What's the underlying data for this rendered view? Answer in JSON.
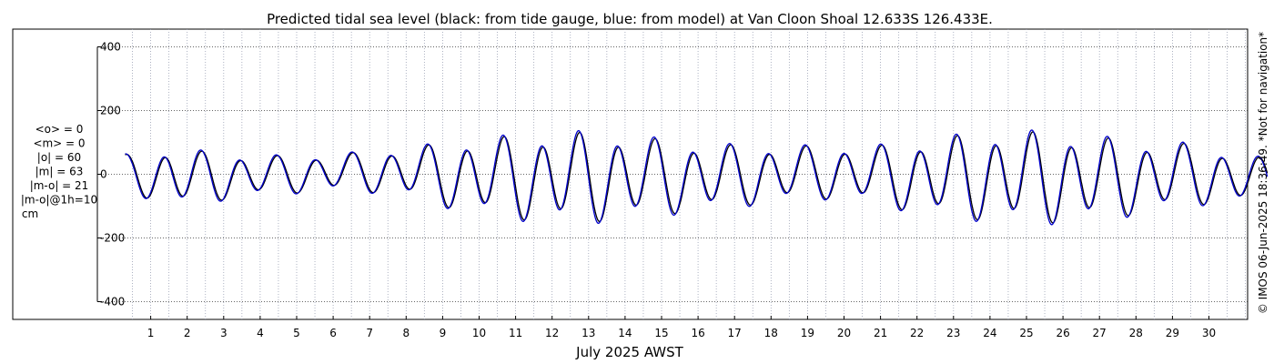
{
  "chart_data": {
    "type": "line",
    "title": "Predicted tidal sea level (black: from tide gauge, blue: from model) at Van Cloon Shoal 12.633S 126.433E.",
    "xlabel": "July 2025 AWST",
    "ylabel": "",
    "xlim": [
      0.3,
      31.6
    ],
    "ylim": [
      -450,
      450
    ],
    "yticks": [
      -400,
      -200,
      0,
      200,
      400
    ],
    "yticklabels": [
      "-400",
      "-200",
      "0",
      "200",
      "400"
    ],
    "xticks": [
      1,
      2,
      3,
      4,
      5,
      6,
      7,
      8,
      9,
      10,
      11,
      12,
      13,
      14,
      15,
      16,
      17,
      18,
      19,
      20,
      21,
      22,
      23,
      24,
      25,
      26,
      27,
      28,
      29,
      30
    ],
    "xticklabels": [
      "1",
      "2",
      "3",
      "4",
      "5",
      "6",
      "7",
      "8",
      "9",
      "10",
      "11",
      "12",
      "13",
      "14",
      "15",
      "16",
      "17",
      "18",
      "19",
      "20",
      "21",
      "22",
      "23",
      "24",
      "25",
      "26",
      "27",
      "28",
      "29",
      "30"
    ],
    "grid": true,
    "colors": {
      "gauge": "#000000",
      "model": "#0000cc",
      "grid": "#9aa0b4"
    },
    "envelope_days": [
      0.3,
      1.5,
      3.3,
      4.5,
      5.7,
      6.7,
      8.3,
      9.5,
      10.6,
      11.7,
      12.7,
      13.7,
      15.0,
      16.3,
      17.8,
      19.3,
      20.8,
      21.8,
      22.6,
      23.6,
      24.6,
      25.6,
      26.6,
      27.6,
      28.6,
      29.6,
      30.6,
      31.6
    ],
    "envelope_high": [
      60,
      80,
      65,
      60,
      65,
      70,
      85,
      105,
      118,
      128,
      132,
      128,
      110,
      95,
      90,
      88,
      90,
      100,
      115,
      128,
      135,
      132,
      122,
      110,
      100,
      95,
      70,
      50
    ],
    "envelope_low": [
      -50,
      -100,
      -75,
      -60,
      -50,
      -50,
      -75,
      -115,
      -130,
      -148,
      -150,
      -142,
      -125,
      -110,
      -90,
      -75,
      -85,
      -115,
      -128,
      -140,
      -150,
      -150,
      -145,
      -130,
      -115,
      -95,
      -90,
      -85
    ],
    "envelope_mid": [
      10,
      0,
      -5,
      -15,
      -20,
      -10,
      10,
      0,
      -10,
      -10,
      -10,
      -10,
      -10,
      -10,
      -5,
      0,
      -10,
      -10,
      -10,
      -5,
      -5,
      -10,
      -10,
      -10,
      -5,
      0,
      -5,
      -10
    ],
    "series": [
      {
        "name": "tide gauge",
        "color": "#000000"
      },
      {
        "name": "model",
        "color": "#0000cc"
      }
    ],
    "stats": [
      "<o> = 0",
      "<m> = 0",
      "|o| = 60",
      "|m| = 63",
      "|m-o| = 21",
      "|m-o|@1h=10",
      "cm"
    ],
    "side_note": "© IMOS 06-Jun-2025 18:36:49. *Not for navigation*"
  }
}
